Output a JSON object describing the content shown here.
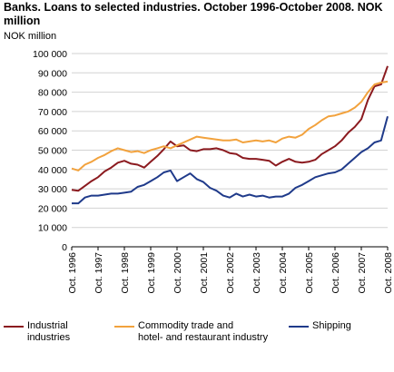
{
  "chart_data": {
    "type": "line",
    "title": "Banks. Loans to selected industries. October 1996-October 2008. NOK million",
    "ylabel": "NOK million",
    "xlabel": "",
    "ylim": [
      0,
      100000
    ],
    "xlim": [
      1996.75,
      2008.75
    ],
    "grid": true,
    "legend_position": "bottom",
    "y_ticks": [
      {
        "value": 0,
        "label": "0"
      },
      {
        "value": 10000,
        "label": "10 000"
      },
      {
        "value": 20000,
        "label": "20 000"
      },
      {
        "value": 30000,
        "label": "30 000"
      },
      {
        "value": 40000,
        "label": "40 000"
      },
      {
        "value": 50000,
        "label": "50 000"
      },
      {
        "value": 60000,
        "label": "60 000"
      },
      {
        "value": 70000,
        "label": "70 000"
      },
      {
        "value": 80000,
        "label": "80 000"
      },
      {
        "value": 90000,
        "label": "90 000"
      },
      {
        "value": 100000,
        "label": "100 000"
      }
    ],
    "x_ticks": [
      {
        "value": 1996.75,
        "label": "Oct. 1996"
      },
      {
        "value": 1997.75,
        "label": "Oct. 1997"
      },
      {
        "value": 1998.75,
        "label": "Oct. 1998"
      },
      {
        "value": 1999.75,
        "label": "Oct. 1999"
      },
      {
        "value": 2000.75,
        "label": "Oct. 2000"
      },
      {
        "value": 2001.75,
        "label": "Oct. 2001"
      },
      {
        "value": 2002.75,
        "label": "Oct. 2002"
      },
      {
        "value": 2003.75,
        "label": "Oct. 2003"
      },
      {
        "value": 2004.75,
        "label": "Oct. 2004"
      },
      {
        "value": 2005.75,
        "label": "Oct. 2005"
      },
      {
        "value": 2006.75,
        "label": "Oct. 2006"
      },
      {
        "value": 2007.75,
        "label": "Oct. 2007"
      },
      {
        "value": 2008.75,
        "label": "Oct. 2008"
      }
    ],
    "series": [
      {
        "name": "Industrial industries",
        "legend_lines": [
          "Industrial",
          "industries"
        ],
        "color": "#8b1a1f",
        "points": [
          [
            1996.75,
            29500
          ],
          [
            1997.0,
            29000
          ],
          [
            1997.25,
            31500
          ],
          [
            1997.5,
            34000
          ],
          [
            1997.75,
            36000
          ],
          [
            1998.0,
            39000
          ],
          [
            1998.25,
            41000
          ],
          [
            1998.5,
            43500
          ],
          [
            1998.75,
            44500
          ],
          [
            1999.0,
            43000
          ],
          [
            1999.25,
            42500
          ],
          [
            1999.5,
            41000
          ],
          [
            1999.75,
            44000
          ],
          [
            2000.0,
            47000
          ],
          [
            2000.25,
            50500
          ],
          [
            2000.5,
            54500
          ],
          [
            2000.75,
            52000
          ],
          [
            2001.0,
            52500
          ],
          [
            2001.25,
            50000
          ],
          [
            2001.5,
            49500
          ],
          [
            2001.75,
            50500
          ],
          [
            2002.0,
            50500
          ],
          [
            2002.25,
            51000
          ],
          [
            2002.5,
            50000
          ],
          [
            2002.75,
            48500
          ],
          [
            2003.0,
            48000
          ],
          [
            2003.25,
            46000
          ],
          [
            2003.5,
            45500
          ],
          [
            2003.75,
            45500
          ],
          [
            2004.0,
            45000
          ],
          [
            2004.25,
            44500
          ],
          [
            2004.5,
            42000
          ],
          [
            2004.75,
            44000
          ],
          [
            2005.0,
            45500
          ],
          [
            2005.25,
            44000
          ],
          [
            2005.5,
            43500
          ],
          [
            2005.75,
            44000
          ],
          [
            2006.0,
            45000
          ],
          [
            2006.25,
            48000
          ],
          [
            2006.5,
            50000
          ],
          [
            2006.75,
            52000
          ],
          [
            2007.0,
            55000
          ],
          [
            2007.25,
            59000
          ],
          [
            2007.5,
            62000
          ],
          [
            2007.75,
            66000
          ],
          [
            2008.0,
            76000
          ],
          [
            2008.25,
            83000
          ],
          [
            2008.5,
            84000
          ],
          [
            2008.75,
            93500
          ]
        ]
      },
      {
        "name": "Commodity trade and hotel- and restaurant industry",
        "legend_lines": [
          "Commodity trade and",
          "hotel- and restaurant industry"
        ],
        "color": "#f2a23d",
        "points": [
          [
            1996.75,
            40500
          ],
          [
            1997.0,
            39500
          ],
          [
            1997.25,
            42500
          ],
          [
            1997.5,
            44000
          ],
          [
            1997.75,
            46000
          ],
          [
            1998.0,
            47500
          ],
          [
            1998.25,
            49500
          ],
          [
            1998.5,
            51000
          ],
          [
            1998.75,
            50000
          ],
          [
            1999.0,
            49000
          ],
          [
            1999.25,
            49500
          ],
          [
            1999.5,
            48500
          ],
          [
            1999.75,
            50000
          ],
          [
            2000.0,
            51000
          ],
          [
            2000.25,
            52000
          ],
          [
            2000.5,
            51000
          ],
          [
            2000.75,
            52500
          ],
          [
            2001.0,
            54000
          ],
          [
            2001.25,
            55500
          ],
          [
            2001.5,
            57000
          ],
          [
            2001.75,
            56500
          ],
          [
            2002.0,
            56000
          ],
          [
            2002.25,
            55500
          ],
          [
            2002.5,
            55000
          ],
          [
            2002.75,
            55000
          ],
          [
            2003.0,
            55500
          ],
          [
            2003.25,
            54000
          ],
          [
            2003.5,
            54500
          ],
          [
            2003.75,
            55000
          ],
          [
            2004.0,
            54500
          ],
          [
            2004.25,
            55000
          ],
          [
            2004.5,
            54000
          ],
          [
            2004.75,
            56000
          ],
          [
            2005.0,
            57000
          ],
          [
            2005.25,
            56500
          ],
          [
            2005.5,
            58000
          ],
          [
            2005.75,
            61000
          ],
          [
            2006.0,
            63000
          ],
          [
            2006.25,
            65500
          ],
          [
            2006.5,
            67500
          ],
          [
            2006.75,
            68000
          ],
          [
            2007.0,
            69000
          ],
          [
            2007.25,
            70000
          ],
          [
            2007.5,
            72000
          ],
          [
            2007.75,
            75000
          ],
          [
            2008.0,
            80000
          ],
          [
            2008.25,
            84000
          ],
          [
            2008.5,
            85000
          ],
          [
            2008.75,
            85500
          ]
        ]
      },
      {
        "name": "Shipping",
        "legend_lines": [
          "Shipping"
        ],
        "color": "#1f3a8a",
        "points": [
          [
            1996.75,
            22500
          ],
          [
            1997.0,
            22500
          ],
          [
            1997.25,
            25500
          ],
          [
            1997.5,
            26500
          ],
          [
            1997.75,
            26500
          ],
          [
            1998.0,
            27000
          ],
          [
            1998.25,
            27500
          ],
          [
            1998.5,
            27500
          ],
          [
            1998.75,
            28000
          ],
          [
            1999.0,
            28500
          ],
          [
            1999.25,
            31000
          ],
          [
            1999.5,
            32000
          ],
          [
            1999.75,
            34000
          ],
          [
            2000.0,
            36000
          ],
          [
            2000.25,
            38500
          ],
          [
            2000.5,
            39500
          ],
          [
            2000.75,
            34000
          ],
          [
            2001.0,
            36000
          ],
          [
            2001.25,
            38000
          ],
          [
            2001.5,
            35000
          ],
          [
            2001.75,
            33500
          ],
          [
            2002.0,
            30500
          ],
          [
            2002.25,
            29000
          ],
          [
            2002.5,
            26500
          ],
          [
            2002.75,
            25500
          ],
          [
            2003.0,
            27500
          ],
          [
            2003.25,
            26000
          ],
          [
            2003.5,
            27000
          ],
          [
            2003.75,
            26000
          ],
          [
            2004.0,
            26500
          ],
          [
            2004.25,
            25500
          ],
          [
            2004.5,
            26000
          ],
          [
            2004.75,
            26000
          ],
          [
            2005.0,
            27500
          ],
          [
            2005.25,
            30500
          ],
          [
            2005.5,
            32000
          ],
          [
            2005.75,
            34000
          ],
          [
            2006.0,
            36000
          ],
          [
            2006.25,
            37000
          ],
          [
            2006.5,
            38000
          ],
          [
            2006.75,
            38500
          ],
          [
            2007.0,
            40000
          ],
          [
            2007.25,
            43000
          ],
          [
            2007.5,
            46000
          ],
          [
            2007.75,
            49000
          ],
          [
            2008.0,
            51000
          ],
          [
            2008.25,
            54000
          ],
          [
            2008.5,
            55000
          ],
          [
            2008.75,
            67500
          ]
        ]
      }
    ]
  }
}
